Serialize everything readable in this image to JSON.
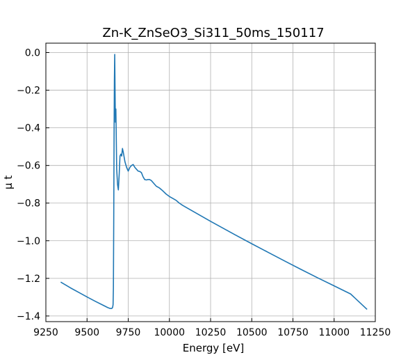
{
  "chart_data": {
    "type": "line",
    "title": "Zn-K_ZnSeO3_Si311_50ms_150117",
    "xlabel": "Energy [eV]",
    "ylabel": "μ t",
    "xlim": [
      9250,
      11250
    ],
    "ylim": [
      -1.43,
      0.05
    ],
    "xticks": [
      9250,
      9500,
      9750,
      10000,
      10250,
      10500,
      10750,
      11000,
      11250
    ],
    "xtick_labels": [
      "9250",
      "9500",
      "9750",
      "10000",
      "10250",
      "10500",
      "10750",
      "11000",
      "11250"
    ],
    "yticks": [
      0.0,
      -0.2,
      -0.4,
      -0.6,
      -0.8,
      -1.0,
      -1.2,
      -1.4
    ],
    "ytick_labels": [
      "0.0",
      "−0.2",
      "−0.4",
      "−0.6",
      "−0.8",
      "−1.0",
      "−1.2",
      "−1.4"
    ],
    "grid": true,
    "color": "#1f77b4",
    "series": [
      {
        "x": [
          9340,
          9400,
          9450,
          9500,
          9550,
          9600,
          9625,
          9640,
          9650,
          9655,
          9658,
          9660,
          9662,
          9664,
          9666,
          9668,
          9670,
          9672,
          9675,
          9680,
          9685,
          9690,
          9695,
          9700,
          9705,
          9710,
          9715,
          9720,
          9730,
          9740,
          9750,
          9760,
          9770,
          9780,
          9790,
          9800,
          9810,
          9820,
          9830,
          9840,
          9850,
          9860,
          9870,
          9880,
          9890,
          9900,
          9920,
          9940,
          9960,
          9980,
          10000,
          10020,
          10040,
          10060,
          10080,
          10100,
          10150,
          10200,
          10250,
          10300,
          10400,
          10500,
          10600,
          10700,
          10800,
          10900,
          11000,
          11100,
          11200
        ],
        "y": [
          -1.22,
          -1.251,
          -1.275,
          -1.299,
          -1.322,
          -1.344,
          -1.355,
          -1.36,
          -1.36,
          -1.355,
          -1.34,
          -1.25,
          -0.9,
          -0.45,
          -0.15,
          -0.01,
          -0.2,
          -0.37,
          -0.3,
          -0.62,
          -0.7,
          -0.73,
          -0.65,
          -0.55,
          -0.54,
          -0.55,
          -0.51,
          -0.53,
          -0.58,
          -0.61,
          -0.63,
          -0.61,
          -0.6,
          -0.595,
          -0.61,
          -0.62,
          -0.63,
          -0.632,
          -0.638,
          -0.66,
          -0.675,
          -0.677,
          -0.675,
          -0.675,
          -0.68,
          -0.69,
          -0.71,
          -0.72,
          -0.735,
          -0.752,
          -0.765,
          -0.775,
          -0.785,
          -0.8,
          -0.812,
          -0.822,
          -0.847,
          -0.872,
          -0.897,
          -0.921,
          -0.969,
          -1.016,
          -1.062,
          -1.108,
          -1.153,
          -1.197,
          -1.24,
          -1.283,
          -1.365
        ]
      }
    ]
  }
}
